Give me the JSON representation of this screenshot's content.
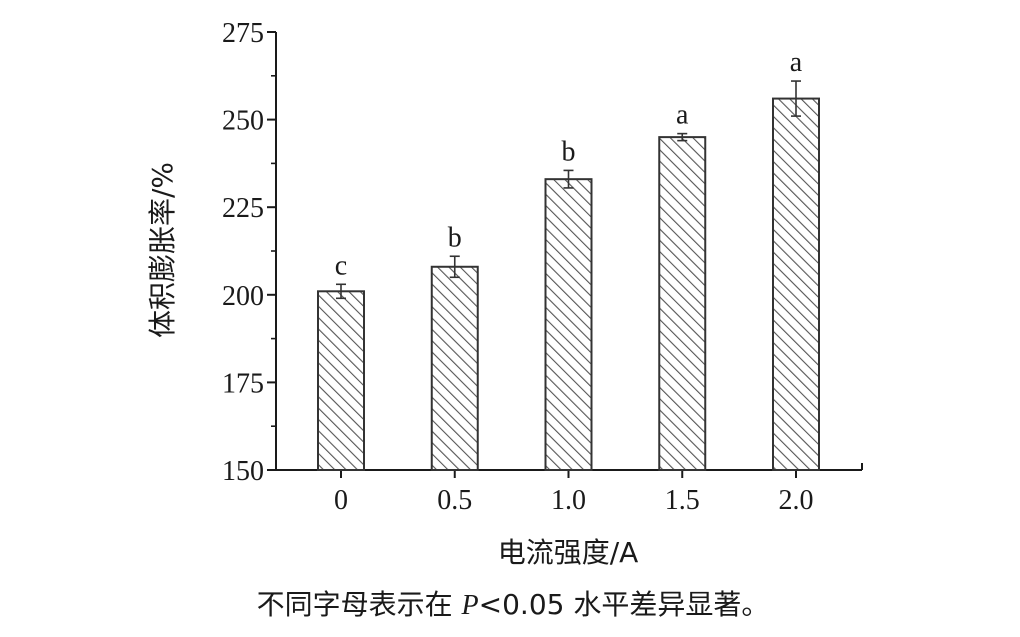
{
  "chart_data": {
    "type": "bar",
    "categories": [
      "0",
      "0.5",
      "1.0",
      "1.5",
      "2.0"
    ],
    "values": [
      201,
      208,
      233,
      245,
      256
    ],
    "errors": [
      2,
      3,
      2.5,
      1,
      5
    ],
    "significance_letters": [
      "c",
      "b",
      "b",
      "a",
      "a"
    ],
    "xlabel": "电流强度/A",
    "ylabel": "体积膨胀率/%",
    "ylim": [
      150,
      275
    ],
    "yticks": [
      150,
      175,
      200,
      225,
      250,
      275
    ],
    "grid": false,
    "bar_fill": "diagonal-hatch",
    "colors": {
      "bar_edge": "#333333",
      "hatch": "#555555",
      "axis": "#1a1a1a"
    }
  },
  "caption": "不同字母表示在 P<0.05 水平差异显著。"
}
